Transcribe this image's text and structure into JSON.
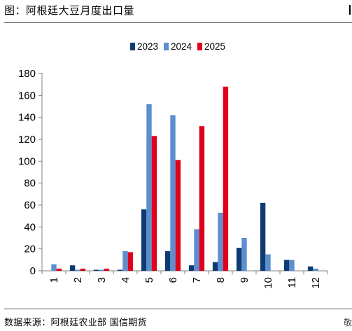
{
  "header": {
    "title": "图：阿根廷大豆月度出口量"
  },
  "footer": {
    "source": "数据来源：阿根廷农业部  国信期货",
    "right_mark": "敬"
  },
  "colors": {
    "2023": "#0f3b73",
    "2024": "#5b8fd0",
    "2025": "#e0001b",
    "grid": "#d0d0d0",
    "axis": "#808080"
  },
  "chart_data": {
    "type": "bar",
    "title": "",
    "xlabel": "",
    "ylabel": "",
    "categories": [
      "1",
      "2",
      "3",
      "4",
      "5",
      "6",
      "7",
      "8",
      "9",
      "10",
      "11",
      "12"
    ],
    "series": [
      {
        "name": "2023",
        "values": [
          0,
          5,
          1,
          1,
          56,
          18,
          5,
          8,
          21,
          62,
          10,
          4
        ]
      },
      {
        "name": "2024",
        "values": [
          6,
          1,
          1,
          18,
          152,
          142,
          38,
          53,
          30,
          15,
          10,
          2
        ]
      },
      {
        "name": "2025",
        "values": [
          2,
          2,
          2,
          17,
          123,
          101,
          132,
          168,
          null,
          null,
          null,
          null
        ]
      }
    ],
    "ylim": [
      0,
      180
    ],
    "yticks": [
      0,
      20,
      40,
      60,
      80,
      100,
      120,
      140,
      160,
      180
    ],
    "grid": false,
    "legend_position": "top-center"
  }
}
